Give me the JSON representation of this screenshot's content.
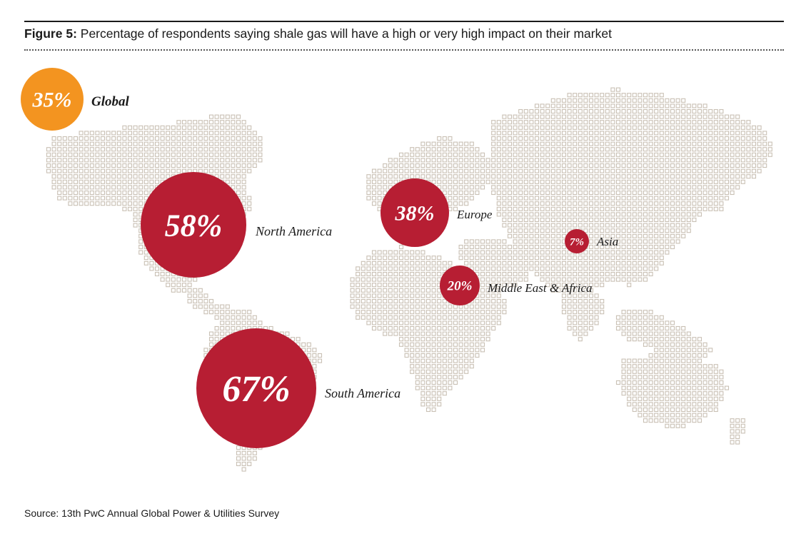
{
  "title": {
    "prefix": "Figure 5:",
    "text": " Percentage of respondents saying shale gas will have a high or very high impact on their market"
  },
  "source": "Source: 13th PwC Annual Global Power & Utilities Survey",
  "colors": {
    "global": "#f39420",
    "region": "#b71e33",
    "map_dot": "#c9c0b4",
    "text": "#1a1a1a"
  },
  "chart_data": {
    "type": "bubble-map",
    "title": "Percentage of respondents saying shale gas will have a high or very high impact on their market",
    "series": [
      {
        "region": "Global",
        "value": 35,
        "label": "35%"
      },
      {
        "region": "North America",
        "value": 58,
        "label": "58%"
      },
      {
        "region": "South America",
        "value": 67,
        "label": "67%"
      },
      {
        "region": "Europe",
        "value": 38,
        "label": "38%"
      },
      {
        "region": "Middle East & Africa",
        "value": 20,
        "label": "20%"
      },
      {
        "region": "Asia",
        "value": 7,
        "label": "7%"
      }
    ]
  }
}
